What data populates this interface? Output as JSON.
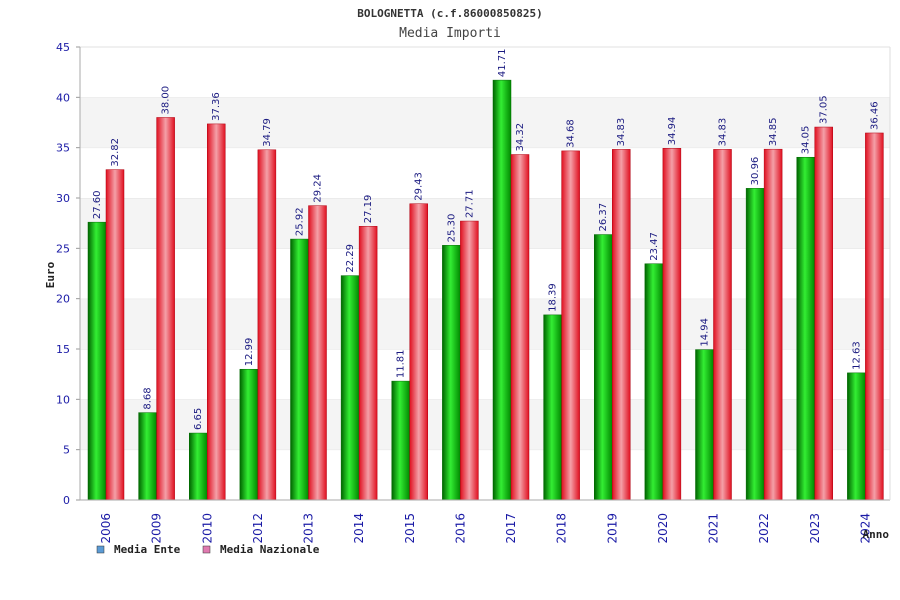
{
  "chart_data": {
    "type": "bar",
    "title": "BOLOGNETTA (c.f.86000850825)",
    "subtitle": "Media Importi",
    "xlabel": "Anno",
    "ylabel": "Euro",
    "ylim": [
      0,
      45
    ],
    "yticks": [
      0,
      5,
      10,
      15,
      20,
      25,
      30,
      35,
      40,
      45
    ],
    "grid": true,
    "legend_position": "bottom-left",
    "categories": [
      "2006",
      "2009",
      "2010",
      "2012",
      "2013",
      "2014",
      "2015",
      "2016",
      "2017",
      "2018",
      "2019",
      "2020",
      "2021",
      "2022",
      "2023",
      "2024"
    ],
    "series": [
      {
        "name": "Media Ente",
        "color": "#00a000",
        "legend_color": "#5b9bd5",
        "values": [
          27.6,
          8.68,
          6.65,
          12.99,
          25.92,
          22.29,
          11.81,
          25.3,
          41.71,
          18.39,
          26.37,
          23.47,
          14.94,
          30.96,
          34.05,
          12.63
        ],
        "labels": [
          "27.60",
          "8.68",
          "6.65",
          "12.99",
          "25.92",
          "22.29",
          "11.81",
          "25.30",
          "41.71",
          "18.39",
          "26.37",
          "23.47",
          "14.94",
          "30.96",
          "34.05",
          "12.63"
        ]
      },
      {
        "name": "Media Nazionale",
        "color": "#e01020",
        "legend_color": "#e07ab0",
        "values": [
          32.82,
          38.0,
          37.36,
          34.79,
          29.24,
          27.19,
          29.43,
          27.71,
          34.32,
          34.68,
          34.83,
          34.94,
          34.83,
          34.85,
          37.05,
          36.46
        ],
        "labels": [
          "32.82",
          "38.00",
          "37.36",
          "34.79",
          "29.24",
          "27.19",
          "29.43",
          "27.71",
          "34.32",
          "34.68",
          "34.83",
          "34.94",
          "34.83",
          "34.85",
          "37.05",
          "36.46"
        ]
      }
    ]
  }
}
